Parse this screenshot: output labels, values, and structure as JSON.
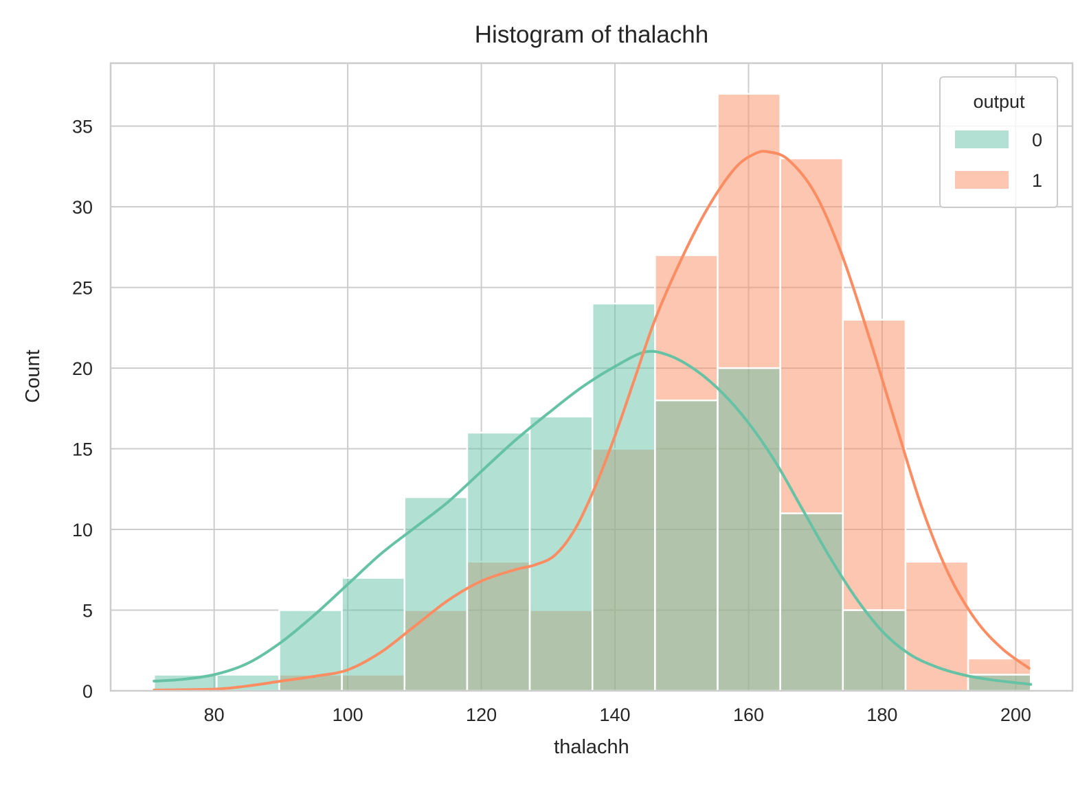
{
  "chart_data": {
    "type": "histogram",
    "title": "Histogram of thalachh",
    "xlabel": "thalachh",
    "ylabel": "Count",
    "xlim": [
      64.5,
      208.5
    ],
    "ylim": [
      0,
      38.9
    ],
    "x_ticks": [
      80,
      100,
      120,
      140,
      160,
      180,
      200
    ],
    "y_ticks": [
      0,
      5,
      10,
      15,
      20,
      25,
      30,
      35
    ],
    "grid": true,
    "legend": {
      "title": "output",
      "placement": "top-right"
    },
    "bin_edges": [
      71,
      80.375,
      89.75,
      99.125,
      108.5,
      117.875,
      127.25,
      136.625,
      146,
      155.375,
      164.75,
      174.125,
      183.5,
      192.875,
      202.25
    ],
    "series": [
      {
        "name": "0",
        "color": "#66c2a5",
        "counts": [
          1,
          1,
          5,
          7,
          12,
          16,
          17,
          24,
          18,
          20,
          11,
          5,
          0,
          1
        ],
        "kde": [
          [
            71,
            0.6
          ],
          [
            75,
            0.7
          ],
          [
            80,
            1.0
          ],
          [
            85,
            1.7
          ],
          [
            90,
            3.0
          ],
          [
            95,
            4.7
          ],
          [
            100,
            6.6
          ],
          [
            105,
            8.5
          ],
          [
            110,
            10.1
          ],
          [
            115,
            11.7
          ],
          [
            120,
            13.6
          ],
          [
            125,
            15.5
          ],
          [
            130,
            17.2
          ],
          [
            135,
            18.8
          ],
          [
            140,
            20.1
          ],
          [
            144.5,
            21.0
          ],
          [
            148,
            20.8
          ],
          [
            152,
            19.9
          ],
          [
            156,
            18.5
          ],
          [
            160,
            16.6
          ],
          [
            164,
            14.2
          ],
          [
            168,
            11.3
          ],
          [
            172,
            8.4
          ],
          [
            176,
            5.8
          ],
          [
            180,
            3.7
          ],
          [
            184,
            2.3
          ],
          [
            188,
            1.5
          ],
          [
            192,
            1.0
          ],
          [
            196,
            0.7
          ],
          [
            200,
            0.5
          ],
          [
            202.25,
            0.4
          ]
        ]
      },
      {
        "name": "1",
        "color": "#fc8d62",
        "counts": [
          0,
          0,
          1,
          1,
          5,
          8,
          5,
          15,
          27,
          37,
          33,
          23,
          8,
          2
        ],
        "kde": [
          [
            71,
            0.05
          ],
          [
            80,
            0.1
          ],
          [
            85,
            0.3
          ],
          [
            90,
            0.6
          ],
          [
            95,
            0.9
          ],
          [
            100,
            1.3
          ],
          [
            105,
            2.4
          ],
          [
            110,
            4.0
          ],
          [
            115,
            5.6
          ],
          [
            120,
            6.8
          ],
          [
            125,
            7.5
          ],
          [
            128,
            7.8
          ],
          [
            131,
            8.4
          ],
          [
            134,
            10.0
          ],
          [
            137,
            12.6
          ],
          [
            140,
            15.8
          ],
          [
            143,
            19.4
          ],
          [
            146,
            23.0
          ],
          [
            150,
            26.8
          ],
          [
            154,
            30.0
          ],
          [
            158,
            32.4
          ],
          [
            161,
            33.3
          ],
          [
            163,
            33.4
          ],
          [
            166,
            32.9
          ],
          [
            170,
            30.8
          ],
          [
            174,
            27.0
          ],
          [
            178,
            22.0
          ],
          [
            182,
            16.6
          ],
          [
            186,
            11.3
          ],
          [
            190,
            7.2
          ],
          [
            194,
            4.4
          ],
          [
            198,
            2.6
          ],
          [
            202,
            1.4
          ]
        ]
      }
    ]
  }
}
